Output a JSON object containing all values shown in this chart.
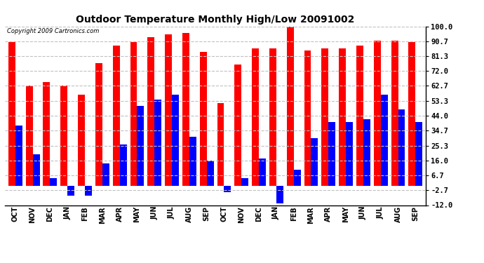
{
  "title": "Outdoor Temperature Monthly High/Low 20091002",
  "copyright": "Copyright 2009 Cartronics.com",
  "months": [
    "OCT",
    "NOV",
    "DEC",
    "JAN",
    "FEB",
    "MAR",
    "APR",
    "MAY",
    "JUN",
    "JUL",
    "AUG",
    "SEP",
    "OCT",
    "NOV",
    "DEC",
    "JAN",
    "FEB",
    "MAR",
    "APR",
    "MAY",
    "JUN",
    "JUL",
    "AUG",
    "SEP"
  ],
  "highs": [
    90,
    63,
    65,
    63,
    57,
    77,
    88,
    90,
    93,
    95,
    96,
    84,
    52,
    76,
    86,
    86,
    102,
    85,
    86,
    86,
    88,
    91,
    91,
    90
  ],
  "lows": [
    38,
    20,
    5,
    -6,
    -6,
    14,
    26,
    50,
    54,
    57,
    31,
    16,
    -4,
    5,
    17,
    -11,
    10,
    30,
    40,
    40,
    42,
    57,
    48,
    40
  ],
  "high_color": "#ff0000",
  "low_color": "#0000ff",
  "bg_color": "#ffffff",
  "grid_color": "#c0c0c0",
  "yticks": [
    100.0,
    90.7,
    81.3,
    72.0,
    62.7,
    53.3,
    44.0,
    34.7,
    25.3,
    16.0,
    6.7,
    -2.7,
    -12.0
  ],
  "ymin": -12.0,
  "ymax": 100.0,
  "bar_width": 0.4
}
